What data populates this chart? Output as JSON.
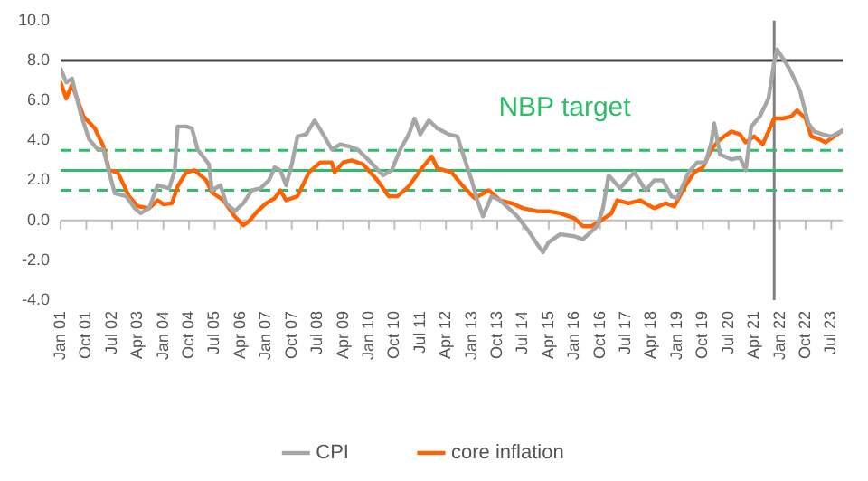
{
  "chart_data": {
    "type": "line",
    "legend": "bottom",
    "grid": false,
    "marker": "none",
    "line_style": "solid",
    "xlim": [
      "2001-01",
      "2023-11"
    ],
    "xticks": [
      {
        "value": "2001-01",
        "label": "Jan 01"
      },
      {
        "value": "2001-10",
        "label": "Oct 01"
      },
      {
        "value": "2002-07",
        "label": "Jul 02"
      },
      {
        "value": "2003-04",
        "label": "Apr 03"
      },
      {
        "value": "2004-01",
        "label": "Jan 04"
      },
      {
        "value": "2004-10",
        "label": "Oct 04"
      },
      {
        "value": "2005-07",
        "label": "Jul 05"
      },
      {
        "value": "2006-04",
        "label": "Apr 06"
      },
      {
        "value": "2007-01",
        "label": "Jan 07"
      },
      {
        "value": "2007-10",
        "label": "Oct 07"
      },
      {
        "value": "2008-07",
        "label": "Jul 08"
      },
      {
        "value": "2009-04",
        "label": "Apr 09"
      },
      {
        "value": "2010-01",
        "label": "Jan 10"
      },
      {
        "value": "2010-10",
        "label": "Oct 10"
      },
      {
        "value": "2011-07",
        "label": "Jul 11"
      },
      {
        "value": "2012-04",
        "label": "Apr 12"
      },
      {
        "value": "2013-01",
        "label": "Jan 13"
      },
      {
        "value": "2013-10",
        "label": "Oct 13"
      },
      {
        "value": "2014-07",
        "label": "Jul 14"
      },
      {
        "value": "2015-04",
        "label": "Apr 15"
      },
      {
        "value": "2016-01",
        "label": "Jan 16"
      },
      {
        "value": "2016-10",
        "label": "Oct 16"
      },
      {
        "value": "2017-07",
        "label": "Jul 17"
      },
      {
        "value": "2018-04",
        "label": "Apr 18"
      },
      {
        "value": "2019-01",
        "label": "Jan 19"
      },
      {
        "value": "2019-10",
        "label": "Oct 19"
      },
      {
        "value": "2020-07",
        "label": "Jul 20"
      },
      {
        "value": "2021-04",
        "label": "Apr 21"
      },
      {
        "value": "2022-01",
        "label": "Jan 22"
      },
      {
        "value": "2022-10",
        "label": "Oct 22"
      },
      {
        "value": "2023-07",
        "label": "Jul 23"
      }
    ],
    "ylim": [
      -4,
      10
    ],
    "yticks": [
      {
        "value": -4,
        "label": "-4.0"
      },
      {
        "value": -2,
        "label": "-2.0"
      },
      {
        "value": 0,
        "label": "0.0"
      },
      {
        "value": 2,
        "label": "2.0"
      },
      {
        "value": 4,
        "label": "4.0"
      },
      {
        "value": 6,
        "label": "6.0"
      },
      {
        "value": 8,
        "label": "8.0"
      },
      {
        "value": 10,
        "label": "10.0"
      }
    ],
    "ref_lines": [
      {
        "axis": "y",
        "value": 8,
        "color": "#404040",
        "line_style": "solid"
      },
      {
        "axis": "x",
        "value": "2021-11",
        "color": "#808080",
        "line_style": "solid"
      },
      {
        "axis": "y",
        "value": 2.5,
        "color": "#2ebd6b",
        "line_style": "solid",
        "label": "NBP target"
      },
      {
        "axis": "y",
        "value": 1.5,
        "color": "#2ebd6b",
        "line_style": "dashed"
      },
      {
        "axis": "y",
        "value": 3.5,
        "color": "#2ebd6b",
        "line_style": "dashed"
      }
    ],
    "series": [
      {
        "name": "CPI",
        "color": "#a6a6a6",
        "x": [
          "2001-01",
          "2001-03",
          "2001-05",
          "2001-08",
          "2001-11",
          "2002-02",
          "2002-04",
          "2002-06",
          "2002-08",
          "2002-12",
          "2003-03",
          "2003-05",
          "2003-08",
          "2003-11",
          "2004-03",
          "2004-05",
          "2004-06",
          "2004-09",
          "2004-11",
          "2005-01",
          "2005-05",
          "2005-06",
          "2005-09",
          "2005-11",
          "2006-02",
          "2006-05",
          "2006-08",
          "2006-11",
          "2007-02",
          "2007-04",
          "2007-06",
          "2007-08",
          "2007-10",
          "2007-12",
          "2008-03",
          "2008-06",
          "2008-09",
          "2008-12",
          "2009-03",
          "2009-06",
          "2009-09",
          "2010-01",
          "2010-06",
          "2010-09",
          "2010-12",
          "2011-03",
          "2011-05",
          "2011-07",
          "2011-10",
          "2012-01",
          "2012-05",
          "2012-08",
          "2012-10",
          "2013-01",
          "2013-03",
          "2013-05",
          "2013-08",
          "2013-11",
          "2014-02",
          "2014-05",
          "2014-09",
          "2014-12",
          "2015-02",
          "2015-04",
          "2015-08",
          "2016-01",
          "2016-04",
          "2016-07",
          "2016-09",
          "2016-11",
          "2017-01",
          "2017-05",
          "2017-08",
          "2017-10",
          "2018-02",
          "2018-05",
          "2018-08",
          "2018-11",
          "2019-01",
          "2019-05",
          "2019-08",
          "2019-11",
          "2020-01",
          "2020-02",
          "2020-04",
          "2020-08",
          "2020-11",
          "2021-01",
          "2021-03",
          "2021-06",
          "2021-09",
          "2021-11",
          "2021-12",
          "2022-03",
          "2022-05",
          "2022-08",
          "2022-11",
          "2023-01",
          "2023-04",
          "2023-07",
          "2023-11"
        ],
        "values": [
          7.6,
          6.9,
          7.1,
          5.35,
          4.05,
          3.55,
          3.55,
          2.4,
          1.35,
          1.2,
          0.6,
          0.35,
          0.6,
          1.75,
          1.6,
          2.5,
          4.7,
          4.7,
          4.6,
          3.55,
          2.8,
          1.5,
          1.75,
          0.85,
          0.45,
          0.85,
          1.5,
          1.6,
          2.0,
          2.65,
          2.5,
          1.75,
          2.8,
          4.2,
          4.3,
          5.0,
          4.3,
          3.55,
          3.8,
          3.7,
          3.55,
          3.0,
          2.25,
          2.5,
          3.55,
          4.3,
          5.1,
          4.3,
          5.0,
          4.6,
          4.3,
          4.2,
          3.3,
          2.0,
          1.0,
          0.2,
          1.2,
          1.0,
          0.6,
          0.2,
          -0.55,
          -1.2,
          -1.6,
          -1.1,
          -0.7,
          -0.8,
          -0.95,
          -0.55,
          -0.3,
          0.6,
          2.25,
          1.6,
          2.1,
          2.4,
          1.5,
          2.0,
          2.0,
          1.2,
          1.1,
          2.4,
          2.9,
          2.9,
          3.9,
          4.85,
          3.3,
          3.05,
          3.15,
          2.5,
          4.7,
          5.2,
          6.1,
          7.9,
          8.55,
          7.9,
          7.4,
          6.5,
          4.85,
          4.45,
          4.3,
          4.2,
          4.5
        ]
      },
      {
        "name": "core inflation",
        "color": "#ff6200",
        "x": [
          "2001-01",
          "2001-03",
          "2001-05",
          "2001-09",
          "2002-01",
          "2002-04",
          "2002-06",
          "2002-09",
          "2003-01",
          "2003-04",
          "2003-08",
          "2003-11",
          "2004-01",
          "2004-04",
          "2004-06",
          "2004-09",
          "2004-12",
          "2005-04",
          "2005-06",
          "2005-10",
          "2006-02",
          "2006-05",
          "2006-07",
          "2006-10",
          "2007-01",
          "2007-04",
          "2007-06",
          "2007-08",
          "2007-12",
          "2008-04",
          "2008-08",
          "2008-12",
          "2009-01",
          "2009-04",
          "2009-07",
          "2009-11",
          "2010-04",
          "2010-08",
          "2010-11",
          "2011-03",
          "2011-07",
          "2011-11",
          "2012-01",
          "2012-06",
          "2012-10",
          "2013-02",
          "2013-07",
          "2013-11",
          "2014-03",
          "2014-07",
          "2014-12",
          "2015-04",
          "2015-08",
          "2016-01",
          "2016-04",
          "2016-07",
          "2016-10",
          "2017-02",
          "2017-04",
          "2017-08",
          "2017-12",
          "2018-05",
          "2018-09",
          "2018-12",
          "2019-04",
          "2019-07",
          "2019-10",
          "2020-01",
          "2020-04",
          "2020-08",
          "2020-11",
          "2021-01",
          "2021-04",
          "2021-07",
          "2021-11",
          "2022-02",
          "2022-05",
          "2022-07",
          "2022-10",
          "2022-12",
          "2023-03",
          "2023-05",
          "2023-08",
          "2023-11"
        ],
        "values": [
          6.9,
          6.1,
          6.8,
          5.2,
          4.6,
          3.7,
          2.5,
          2.4,
          1.2,
          0.7,
          0.6,
          1.0,
          0.8,
          0.85,
          1.7,
          2.4,
          2.5,
          2.0,
          1.4,
          1.0,
          0.2,
          -0.25,
          -0.05,
          0.45,
          0.85,
          1.1,
          1.5,
          1.0,
          1.2,
          2.4,
          2.9,
          2.9,
          2.4,
          2.9,
          3.0,
          2.8,
          2.0,
          1.2,
          1.2,
          1.7,
          2.5,
          3.2,
          2.6,
          2.4,
          1.7,
          1.1,
          1.5,
          1.0,
          0.85,
          0.6,
          0.45,
          0.45,
          0.35,
          0.1,
          -0.3,
          -0.3,
          -0.05,
          0.35,
          1.0,
          0.85,
          1.0,
          0.6,
          0.85,
          0.7,
          1.75,
          2.4,
          2.65,
          3.55,
          4.05,
          4.45,
          4.3,
          3.9,
          4.2,
          3.8,
          5.1,
          5.1,
          5.2,
          5.5,
          5.1,
          4.2,
          4.05,
          3.9,
          4.2,
          4.5
        ]
      }
    ]
  }
}
